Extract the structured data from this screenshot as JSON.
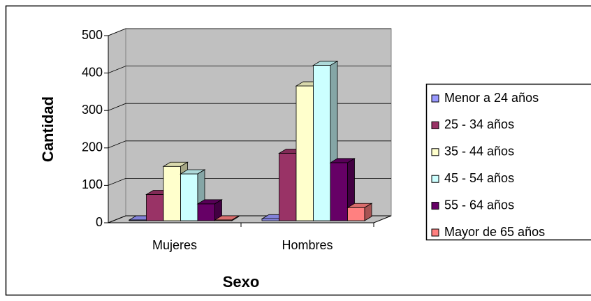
{
  "chart_data": {
    "type": "bar",
    "xlabel": "Sexo",
    "ylabel": "Cantidad",
    "categories": [
      "Mujeres",
      "Hombres"
    ],
    "series": [
      {
        "name": "Menor a 24 años",
        "color": "#9999ff",
        "values": [
          2,
          5
        ]
      },
      {
        "name": "25 - 34 años",
        "color": "#993366",
        "values": [
          70,
          180
        ]
      },
      {
        "name": "35 - 44 años",
        "color": "#ffffcc",
        "values": [
          145,
          360
        ]
      },
      {
        "name": "45 - 54 años",
        "color": "#ccffff",
        "values": [
          125,
          415
        ]
      },
      {
        "name": "55 - 64 años",
        "color": "#660066",
        "values": [
          45,
          155
        ]
      },
      {
        "name": "Mayor de 65 años",
        "color": "#ff8080",
        "values": [
          2,
          35
        ]
      }
    ],
    "ylim": [
      0,
      500
    ],
    "yticks": [
      0,
      100,
      200,
      300,
      400,
      500
    ],
    "grid": true,
    "legend": "right"
  }
}
